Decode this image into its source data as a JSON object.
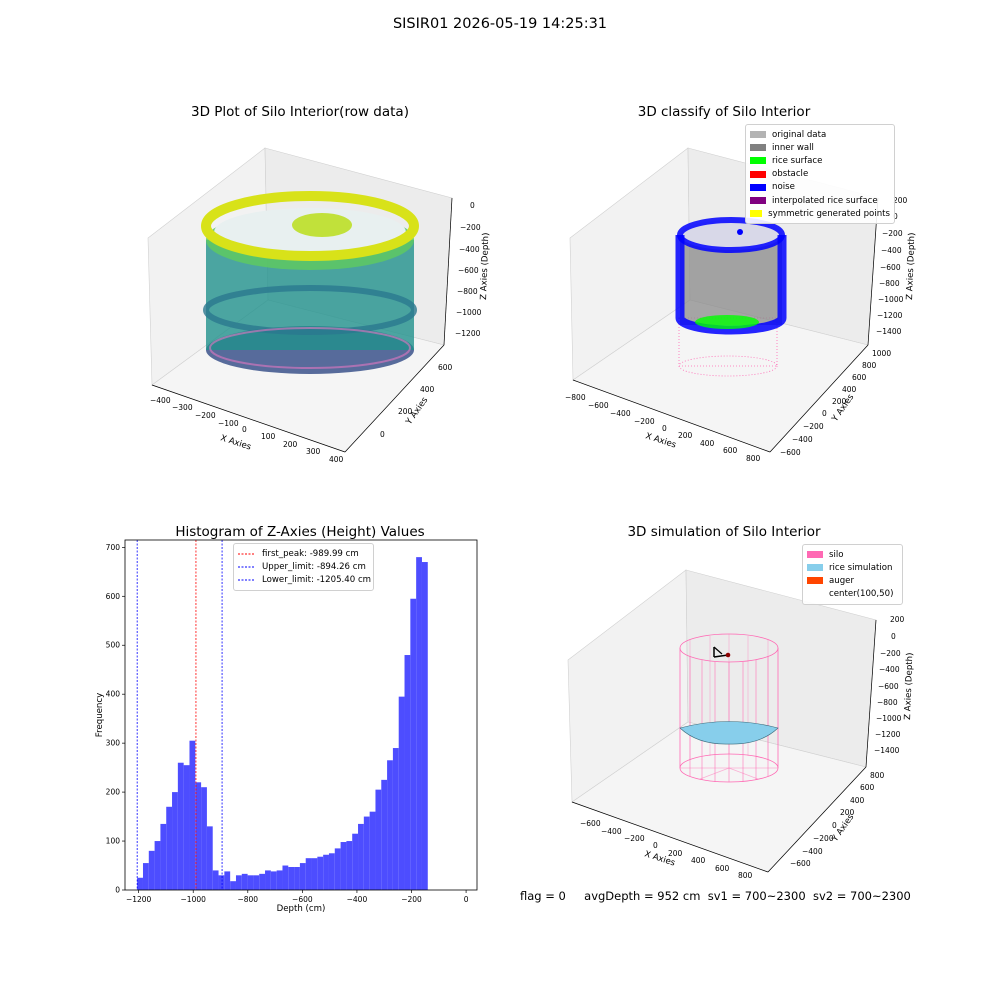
{
  "suptitle": "SISIR01 2026-05-19 14:25:31",
  "footer": {
    "flag": "flag = 0",
    "avg_depth": "avgDepth = 952 cm",
    "sv1": "sv1 = 700~2300",
    "sv2": "sv2 = 700~2300"
  },
  "colors": {
    "original_data": "#b3b3b3",
    "inner_wall": "#808080",
    "rice_surface": "#00ff00",
    "obstacle": "#ff0000",
    "noise": "#0000ff",
    "interpolated_rice_surface": "#800080",
    "symmetric_generated_points": "#ffff00",
    "silo": "#ff69b4",
    "rice_simulation": "#87ceeb",
    "auger": "#ff4500",
    "histogram": "#4d4dff"
  },
  "panels": {
    "raw": {
      "title": "3D Plot of Silo Interior(row data)",
      "xlabel": "X Axies",
      "ylabel": "Y Axies",
      "zlabel": "Z Axies (Depth)",
      "x_ticks": [
        "−400",
        "−300",
        "−200",
        "−100",
        "0",
        "100",
        "200",
        "300",
        "400"
      ],
      "y_ticks": [
        "0",
        "200",
        "400",
        "600"
      ],
      "z_ticks": [
        "0",
        "−200",
        "−400",
        "−600",
        "−800",
        "−1000",
        "−1200"
      ]
    },
    "classify": {
      "title": "3D classify of Silo Interior",
      "xlabel": "X Axies",
      "ylabel": "Y Axies",
      "zlabel": "Z Axies (Depth)",
      "x_ticks": [
        "−800",
        "−600",
        "−400",
        "−200",
        "0",
        "200",
        "400",
        "600",
        "800"
      ],
      "y_ticks": [
        "−600",
        "−400",
        "−200",
        "0",
        "200",
        "400",
        "600",
        "800",
        "1000"
      ],
      "z_ticks": [
        "200",
        "0",
        "−200",
        "−400",
        "−600",
        "−800",
        "−1000",
        "−1200",
        "−1400"
      ],
      "legend": [
        {
          "label": "original data",
          "color_key": "original_data"
        },
        {
          "label": "inner wall",
          "color_key": "inner_wall"
        },
        {
          "label": "rice surface",
          "color_key": "rice_surface"
        },
        {
          "label": "obstacle",
          "color_key": "obstacle"
        },
        {
          "label": "noise",
          "color_key": "noise"
        },
        {
          "label": "interpolated rice surface",
          "color_key": "interpolated_rice_surface"
        },
        {
          "label": "symmetric generated points",
          "color_key": "symmetric_generated_points"
        }
      ]
    },
    "simulation": {
      "title": "3D simulation of Silo Interior",
      "xlabel": "X Axies",
      "ylabel": "Y Axies",
      "zlabel": "Z Axies (Depth)",
      "x_ticks": [
        "−600",
        "−400",
        "−200",
        "0",
        "200",
        "400",
        "600",
        "800"
      ],
      "y_ticks": [
        "−600",
        "−400",
        "−200",
        "0",
        "200",
        "400",
        "600",
        "800"
      ],
      "z_ticks": [
        "200",
        "0",
        "−200",
        "−400",
        "−600",
        "−800",
        "−1000",
        "−1200",
        "−1400"
      ],
      "legend": [
        {
          "label": "silo",
          "color_key": "silo"
        },
        {
          "label": "rice simulation",
          "color_key": "rice_simulation"
        },
        {
          "label": "auger",
          "color_key": "auger"
        },
        {
          "label": "center(100,50)",
          "color_key": ""
        }
      ]
    }
  },
  "chart_data": {
    "type": "bar",
    "title": "Histogram of Z-Axies (Height) Values",
    "xlabel": "Depth (cm)",
    "ylabel": "Frequency",
    "xlim": [
      -1250,
      40
    ],
    "ylim": [
      0,
      715
    ],
    "x_ticks": [
      -1200,
      -1000,
      -800,
      -600,
      -400,
      -200,
      0
    ],
    "y_ticks": [
      0,
      100,
      200,
      300,
      400,
      500,
      600,
      700
    ],
    "bin_start": -1205.4,
    "bin_width": 21.3,
    "values": [
      25,
      55,
      80,
      100,
      135,
      170,
      200,
      260,
      255,
      305,
      220,
      210,
      130,
      40,
      30,
      38,
      18,
      30,
      33,
      30,
      30,
      33,
      40,
      38,
      40,
      50,
      47,
      47,
      55,
      65,
      65,
      68,
      72,
      75,
      85,
      98,
      100,
      115,
      135,
      150,
      160,
      205,
      225,
      265,
      290,
      395,
      480,
      595,
      680,
      670
    ],
    "vlines": [
      {
        "name": "first_peak: -989.99 cm",
        "x": -989.99,
        "color": "#ff0000"
      },
      {
        "name": "Upper_limit: -894.26 cm",
        "x": -894.26,
        "color": "#0000ff"
      },
      {
        "name": "Lower_limit: -1205.40 cm",
        "x": -1205.4,
        "color": "#0000ff"
      }
    ]
  }
}
